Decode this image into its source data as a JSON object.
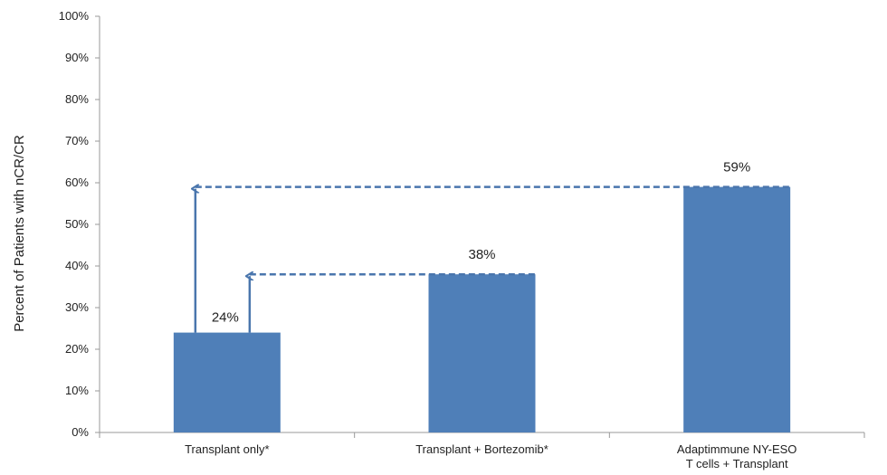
{
  "chart_data": {
    "type": "bar",
    "categories": [
      [
        "Transplant only*"
      ],
      [
        "Transplant + Bortezomib*"
      ],
      [
        "Adaptimmune NY-ESO",
        "T cells + Transplant"
      ]
    ],
    "values": [
      24,
      38,
      59
    ],
    "data_labels": [
      "24%",
      "38%",
      "59%"
    ],
    "ylabel": "Percent of Patients with nCR/CR",
    "ylim": [
      0,
      100
    ],
    "yticks": [
      "0%",
      "10%",
      "20%",
      "30%",
      "40%",
      "50%",
      "60%",
      "70%",
      "80%",
      "90%",
      "100%"
    ],
    "grid": false,
    "bar_color": "#4f7fb8",
    "annotation_color": "#4a76ad",
    "annotations": [
      {
        "type": "arrow-up",
        "from_category": 0,
        "to_category": 2,
        "from_value": 24,
        "to_value": 59
      },
      {
        "type": "arrow-up",
        "from_category": 0,
        "to_category": 1,
        "from_value": 24,
        "to_value": 38
      }
    ]
  }
}
